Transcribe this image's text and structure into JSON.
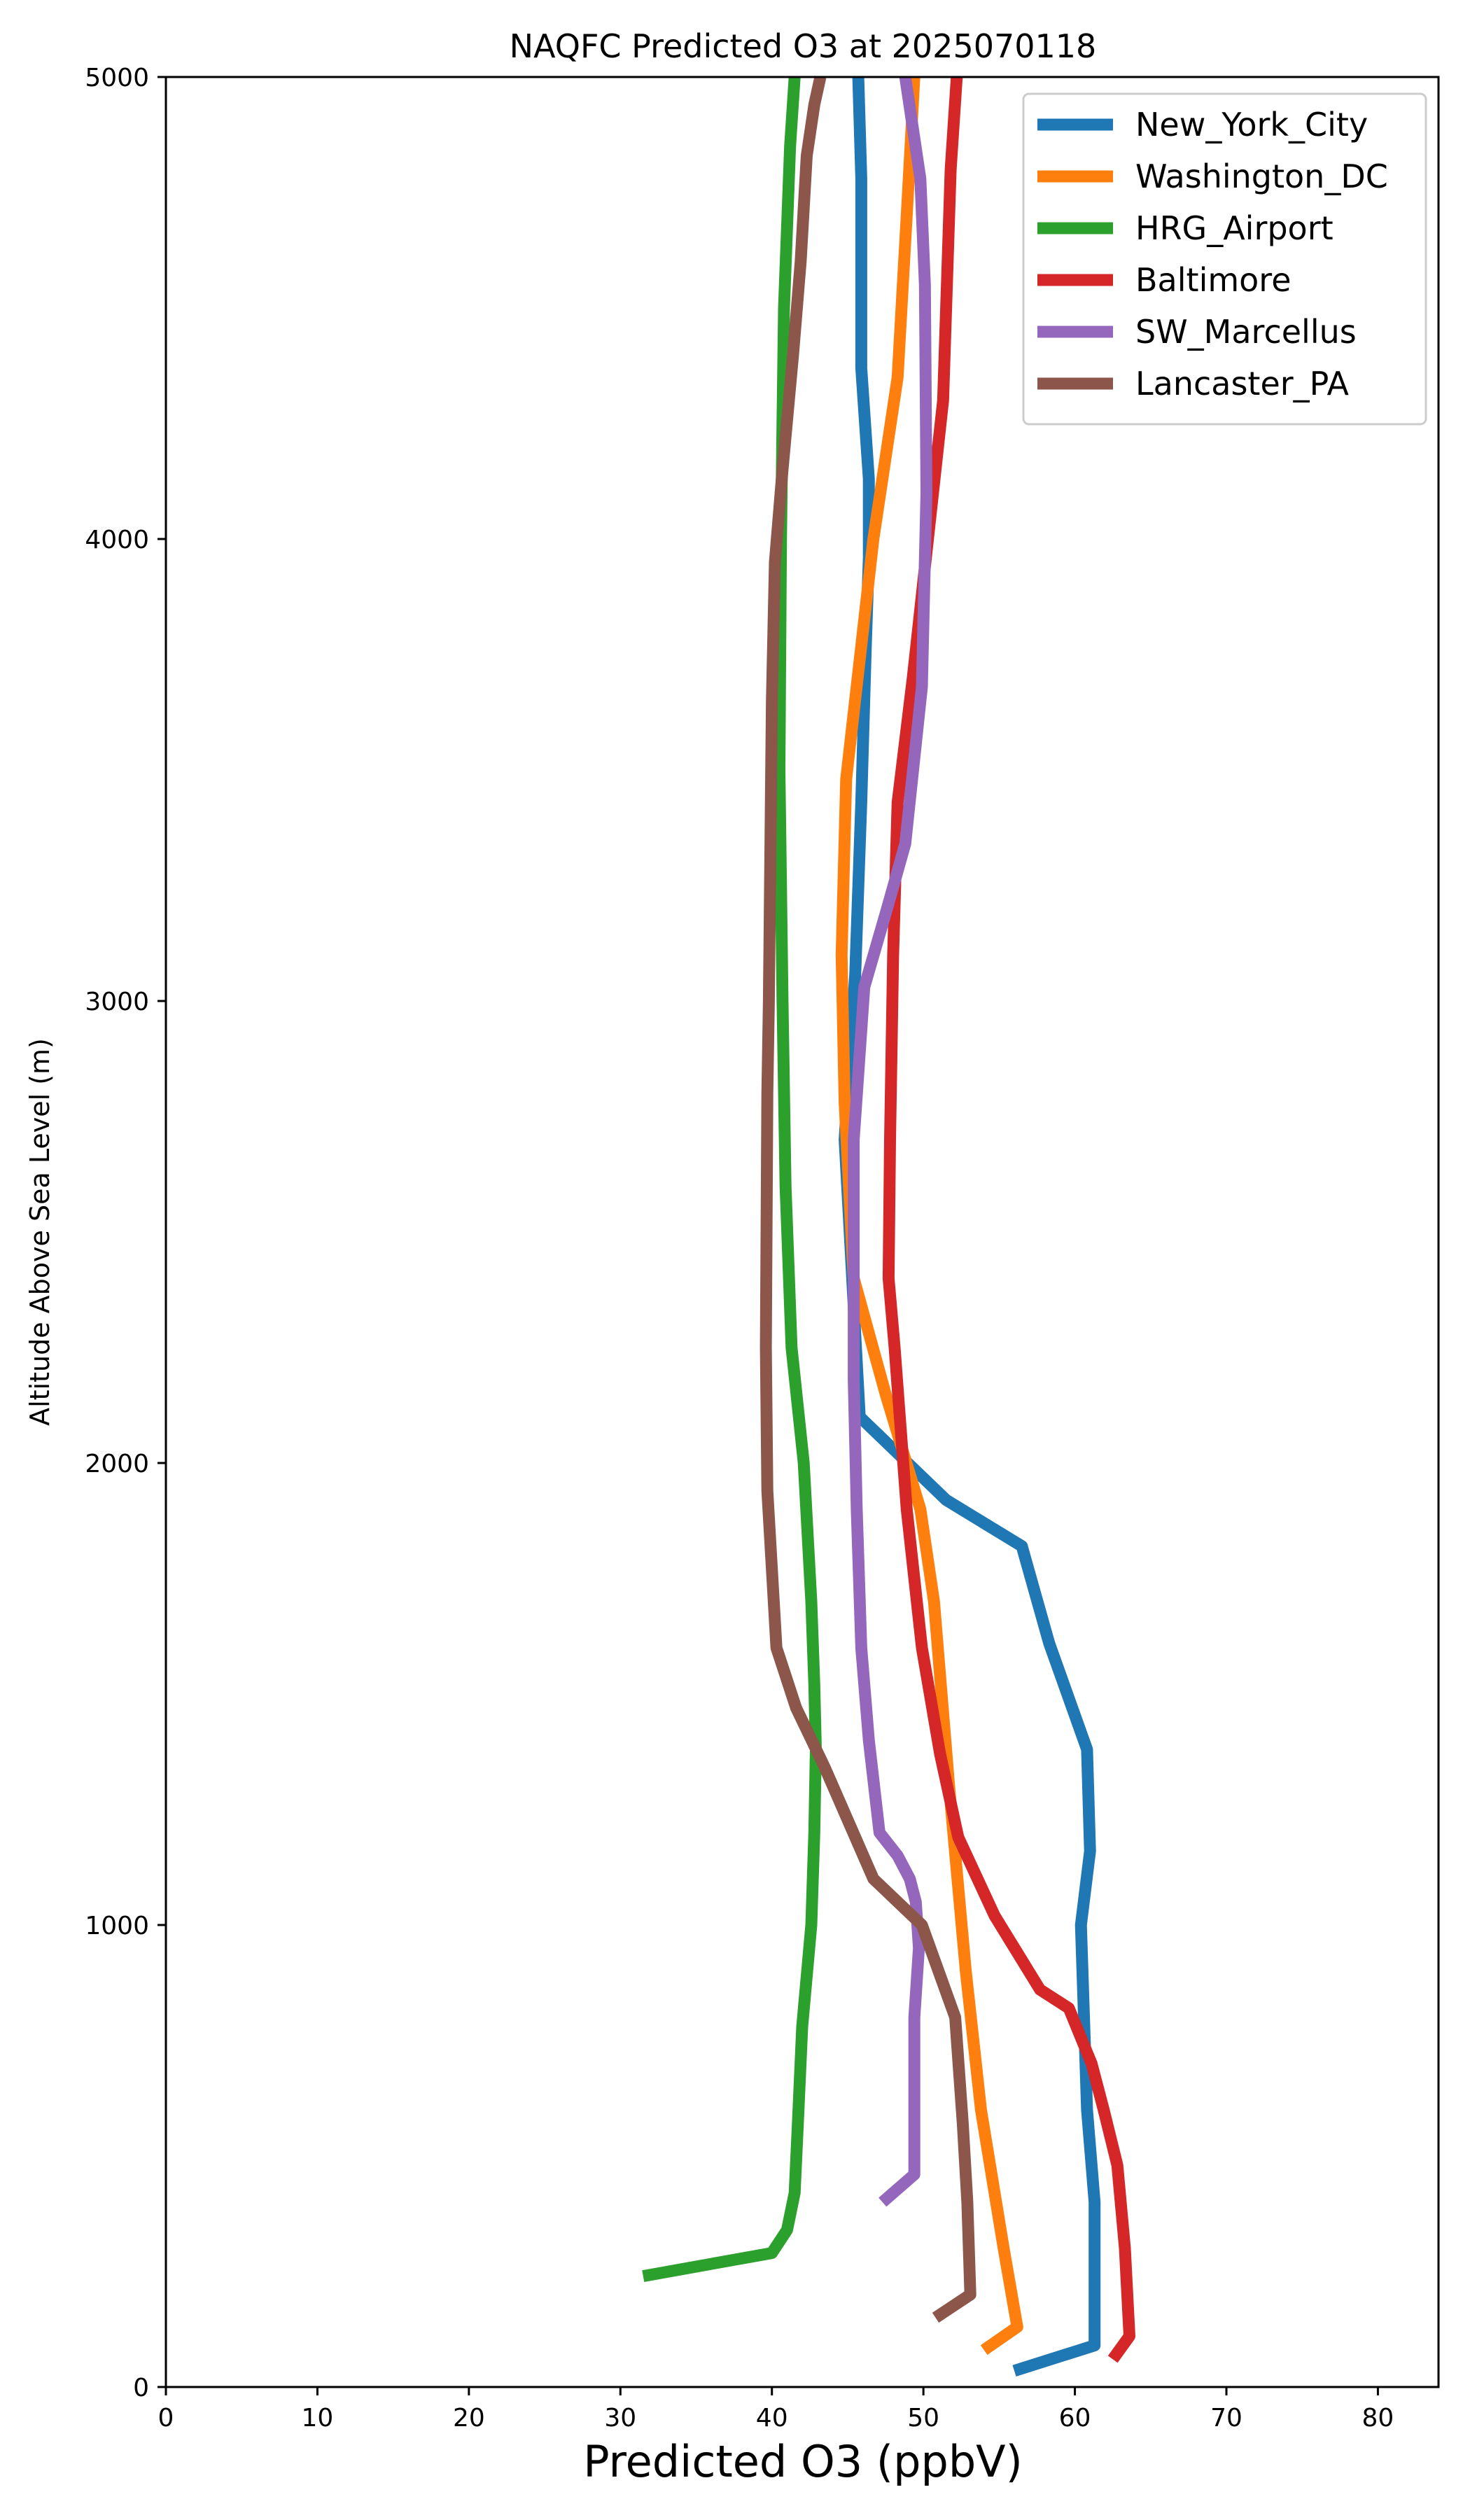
{
  "chart_data": {
    "type": "line",
    "title": "NAQFC Predicted O3 at 2025070118",
    "xlabel": "Predicted O3 (ppbV)",
    "ylabel": "Altitude Above Sea Level (m)",
    "xlim": [
      0,
      84
    ],
    "ylim": [
      0,
      5000
    ],
    "xticks": [
      0,
      10,
      20,
      30,
      40,
      50,
      60,
      70,
      80
    ],
    "yticks": [
      0,
      1000,
      2000,
      3000,
      4000,
      5000
    ],
    "grid": false,
    "legend_position": "top-right",
    "series": [
      {
        "name": "New_York_City",
        "color": "#1f77b4",
        "x": [
          56.0,
          61.3,
          61.3,
          60.8,
          60.4,
          61.0,
          60.8,
          58.3,
          56.5,
          51.5,
          45.8,
          44.8,
          45.5,
          45.9,
          46.2,
          46.4,
          46.4,
          45.9,
          45.9,
          45.7
        ],
        "y": [
          35,
          90,
          400,
          600,
          1000,
          1160,
          1380,
          1610,
          1820,
          1920,
          2100,
          2700,
          3060,
          3430,
          3770,
          3960,
          4130,
          4370,
          4780,
          5000
        ]
      },
      {
        "name": "Washington_DC",
        "color": "#ff7f0e",
        "x": [
          54.0,
          56.2,
          55.3,
          53.8,
          52.8,
          51.7,
          50.7,
          49.8,
          47.5,
          45.4,
          44.8,
          44.6,
          44.9,
          46.7,
          48.3,
          48.9,
          49.4
        ],
        "y": [
          80,
          130,
          300,
          600,
          900,
          1300,
          1700,
          1900,
          2150,
          2400,
          2780,
          3100,
          3480,
          4000,
          4350,
          4700,
          5000
        ]
      },
      {
        "name": "HRG_Airport",
        "color": "#2ca02c",
        "x": [
          31.5,
          40.0,
          41.0,
          41.5,
          41.7,
          42.0,
          42.3,
          42.6,
          42.8,
          42.9,
          42.8,
          42.6,
          42.1,
          41.3,
          40.9,
          40.7,
          40.5,
          40.6,
          40.8,
          41.2,
          41.5
        ],
        "y": [
          240,
          290,
          340,
          420,
          560,
          780,
          890,
          1000,
          1200,
          1380,
          1520,
          1700,
          2000,
          2250,
          2600,
          3000,
          3500,
          4000,
          4500,
          4850,
          5000
        ]
      },
      {
        "name": "Baltimore",
        "color": "#d62728",
        "x": [
          62.5,
          63.6,
          63.3,
          62.8,
          61.9,
          61.1,
          59.6,
          57.7,
          54.7,
          52.3,
          51.1,
          49.9,
          48.9,
          48.1,
          47.7,
          47.8,
          48.0,
          48.3,
          49.3,
          51.3,
          51.8,
          52.2
        ],
        "y": [
          60,
          110,
          300,
          480,
          600,
          700,
          820,
          860,
          1020,
          1190,
          1370,
          1600,
          1900,
          2250,
          2400,
          2700,
          3100,
          3430,
          3700,
          4300,
          4800,
          5000
        ]
      },
      {
        "name": "SW_Marcellus",
        "color": "#9467bd",
        "x": [
          47.3,
          49.4,
          49.4,
          49.4,
          49.7,
          49.5,
          49.1,
          48.3,
          47.1,
          46.4,
          45.9,
          45.6,
          45.4,
          45.4,
          46.1,
          47.6,
          48.8,
          49.9,
          50.2,
          50.1,
          49.8,
          48.8
        ],
        "y": [
          400,
          460,
          570,
          800,
          950,
          1050,
          1100,
          1150,
          1200,
          1400,
          1600,
          1900,
          2180,
          2700,
          3030,
          3200,
          3340,
          3680,
          4100,
          4550,
          4780,
          5000
        ]
      },
      {
        "name": "Lancaster_PA",
        "color": "#8c564b",
        "x": [
          50.8,
          53.1,
          52.9,
          52.6,
          52.1,
          49.9,
          46.7,
          43.5,
          41.6,
          40.3,
          39.7,
          39.6,
          39.7,
          39.8,
          40.0,
          40.2,
          40.7,
          41.4,
          41.9,
          42.3,
          42.8,
          43.2
        ],
        "y": [
          150,
          200,
          400,
          570,
          800,
          1000,
          1100,
          1340,
          1470,
          1600,
          1940,
          2250,
          2800,
          3000,
          3650,
          3950,
          4150,
          4400,
          4600,
          4830,
          4940,
          5000
        ]
      }
    ]
  }
}
